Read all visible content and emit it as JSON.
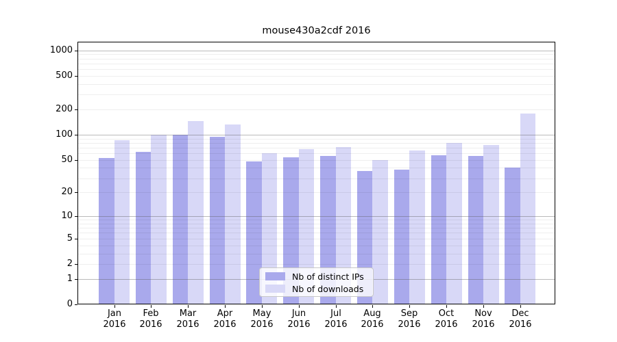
{
  "chart_data": {
    "type": "bar",
    "title": "mouse430a2cdf 2016",
    "x_month_labels": [
      "Jan",
      "Feb",
      "Mar",
      "Apr",
      "May",
      "Jun",
      "Jul",
      "Aug",
      "Sep",
      "Oct",
      "Nov",
      "Dec"
    ],
    "x_year_label": "2016",
    "series": [
      {
        "name": "Nb of distinct IPs",
        "color": "#a9a9ec",
        "values": [
          53,
          62,
          101,
          95,
          48,
          54,
          56,
          37,
          38,
          57,
          56,
          40
        ]
      },
      {
        "name": "Nb of downloads",
        "color": "#d8d8f7",
        "values": [
          86,
          100,
          145,
          133,
          60,
          67,
          71,
          50,
          65,
          80,
          75,
          180
        ]
      }
    ],
    "y_axis": {
      "scale": "log1p",
      "ticks": [
        0,
        1,
        2,
        5,
        10,
        20,
        50,
        100,
        200,
        500,
        1000
      ],
      "ylim": [
        0,
        1270
      ],
      "major_gridlines": [
        1,
        10,
        100,
        1000
      ],
      "minor_gridline_bases": [
        2,
        3,
        4,
        5,
        6,
        7,
        8,
        9
      ],
      "minor_gridline_decades": [
        1,
        10,
        100
      ]
    },
    "grid": "on",
    "legend": {
      "position": "inside-bottom-center"
    },
    "colors": {
      "axis": "#000000",
      "major_grid": "#b3b3b3",
      "minor_grid": "#ededed",
      "background": "#ffffff"
    }
  }
}
